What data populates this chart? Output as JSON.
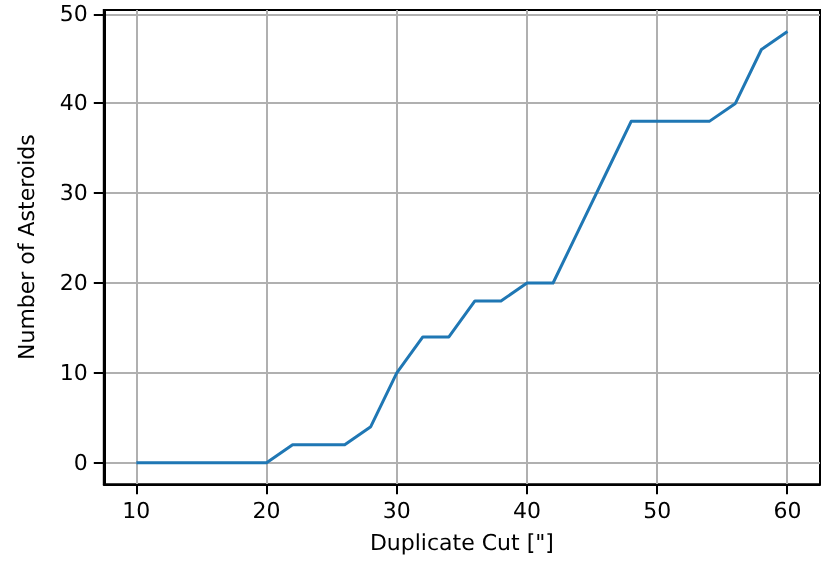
{
  "chart_data": {
    "type": "line",
    "xlabel": "Duplicate Cut [\"]",
    "ylabel": "Number of Asteroids",
    "x": [
      10,
      12,
      14,
      16,
      18,
      20,
      22,
      24,
      26,
      28,
      30,
      32,
      34,
      36,
      38,
      40,
      42,
      44,
      46,
      48,
      50,
      52,
      54,
      56,
      58,
      60
    ],
    "series": [
      {
        "color": "#1f77b4",
        "values": [
          0,
          0,
          0,
          0,
          0,
          0,
          2,
          2,
          2,
          4,
          10,
          14,
          14,
          18,
          18,
          20,
          20,
          26,
          32,
          38,
          38,
          38,
          38,
          40,
          46,
          48
        ]
      }
    ],
    "xlim": [
      7.5,
      62.5
    ],
    "xticks": [
      10,
      20,
      30,
      40,
      50,
      60
    ],
    "ylim": [
      -2.4,
      50.4
    ],
    "yticks": [
      0,
      10,
      20,
      30,
      40,
      50
    ],
    "grid": true
  }
}
